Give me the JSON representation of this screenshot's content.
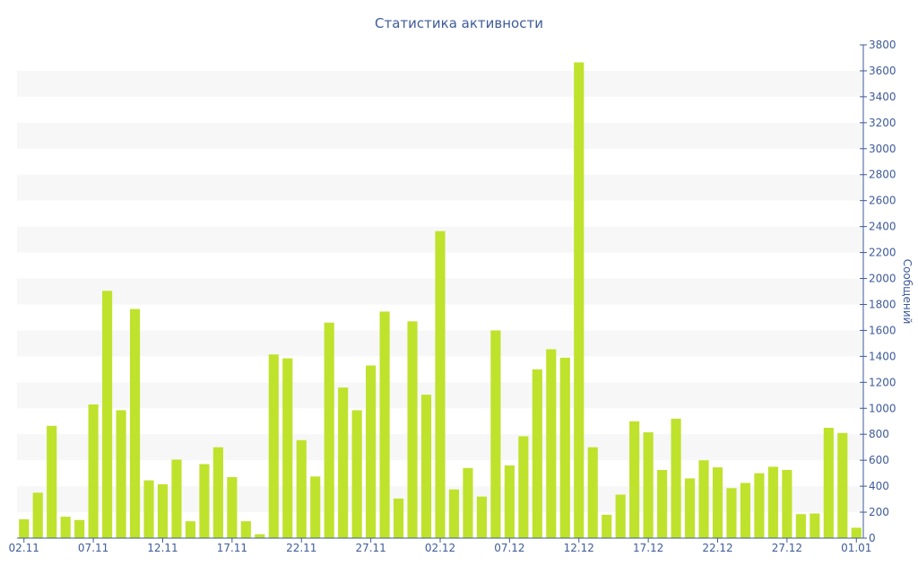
{
  "chart_data": {
    "type": "bar",
    "title": "Статистика активности",
    "xlabel": "",
    "ylabel": "Сообщений",
    "ylim": [
      0,
      3800
    ],
    "y_ticks": [
      0,
      200,
      400,
      600,
      800,
      1000,
      1200,
      1400,
      1600,
      1800,
      2000,
      2200,
      2400,
      2600,
      2800,
      3000,
      3200,
      3400,
      3600,
      3800
    ],
    "y_axis_side": "right",
    "grid": "alternating horizontal bands",
    "x_tick_labels": [
      "02.11",
      "07.11",
      "12.11",
      "17.11",
      "22.11",
      "27.11",
      "02.12",
      "07.12",
      "12.12",
      "17.12",
      "22.12",
      "27.12",
      "01.01"
    ],
    "x_tick_every": 5,
    "categories": [
      "02.11",
      "03.11",
      "04.11",
      "05.11",
      "06.11",
      "07.11",
      "08.11",
      "09.11",
      "10.11",
      "11.11",
      "12.11",
      "13.11",
      "14.11",
      "15.11",
      "16.11",
      "17.11",
      "18.11",
      "19.11",
      "20.11",
      "21.11",
      "22.11",
      "23.11",
      "24.11",
      "25.11",
      "26.11",
      "27.11",
      "28.11",
      "29.11",
      "30.11",
      "01.12",
      "02.12",
      "03.12",
      "04.12",
      "05.12",
      "06.12",
      "07.12",
      "08.12",
      "09.12",
      "10.12",
      "11.12",
      "12.12",
      "13.12",
      "14.12",
      "15.12",
      "16.12",
      "17.12",
      "18.12",
      "19.12",
      "20.12",
      "21.12",
      "22.12",
      "23.12",
      "24.12",
      "25.12",
      "26.12",
      "27.12",
      "28.12",
      "29.12",
      "30.12",
      "31.12",
      "01.01"
    ],
    "values": [
      145,
      350,
      865,
      165,
      140,
      1030,
      1905,
      985,
      1765,
      445,
      415,
      605,
      130,
      570,
      700,
      470,
      130,
      30,
      1415,
      1385,
      755,
      475,
      1660,
      1160,
      985,
      1330,
      1745,
      305,
      1670,
      1105,
      2365,
      375,
      540,
      320,
      1600,
      560,
      785,
      1300,
      1455,
      1390,
      3665,
      700,
      180,
      335,
      900,
      815,
      525,
      920,
      460,
      600,
      545,
      385,
      425,
      500,
      550,
      525,
      185,
      190,
      850,
      810,
      80
    ],
    "bar_color": "#bfe22c",
    "band_color": "#f7f7f7",
    "axis_color": "#3e5b99"
  }
}
